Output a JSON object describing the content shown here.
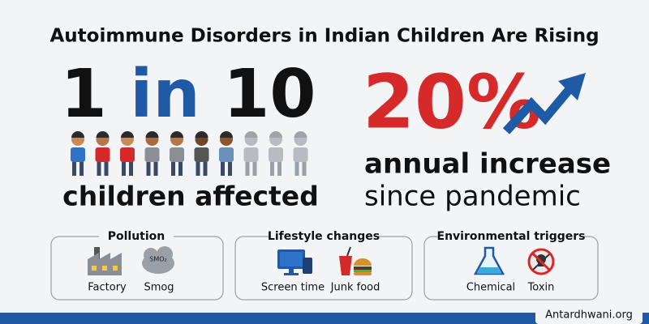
{
  "header": {
    "title": "Autoimmune Disorders in Indian Children Are Rising"
  },
  "stat_one": {
    "parts": [
      "1",
      "in",
      "10"
    ],
    "caption": "children affected"
  },
  "stat_two": {
    "figure": "20%",
    "caption_lines": [
      "annual increase",
      "since pandemic"
    ]
  },
  "factors": [
    {
      "title": "Pollution",
      "items": [
        "Factory",
        "Smog"
      ],
      "icon_text": "SMO₂"
    },
    {
      "title": "Lifestyle changes",
      "items": [
        "Screen time",
        "Junk food"
      ]
    },
    {
      "title": "Environmental triggers",
      "items": [
        "Chemical",
        "Toxin"
      ]
    }
  ],
  "footer": {
    "site": "Antardhwani.org"
  }
}
